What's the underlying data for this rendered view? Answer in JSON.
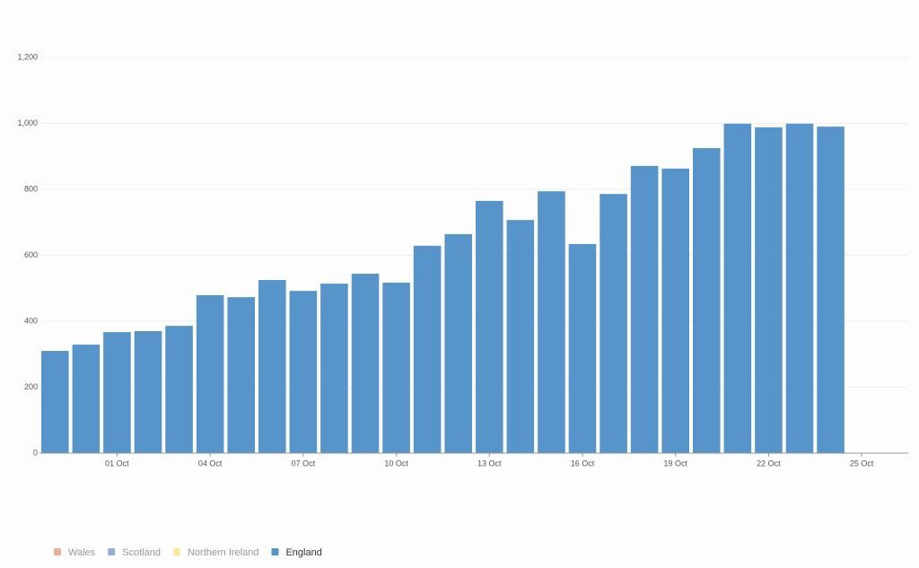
{
  "chart_data": {
    "type": "bar",
    "stacked": true,
    "categories": [
      null,
      null,
      "01 Oct",
      null,
      null,
      "04 Oct",
      null,
      null,
      "07 Oct",
      null,
      null,
      "10 Oct",
      null,
      null,
      "13 Oct",
      null,
      null,
      "16 Oct",
      null,
      null,
      "19 Oct",
      null,
      null,
      "22 Oct",
      null,
      null,
      "25 Oct",
      null
    ],
    "series": [
      {
        "name": "Wales",
        "color": "#e8917b",
        "hidden": true,
        "values": [
          null,
          null,
          null,
          null,
          null,
          null,
          null,
          null,
          null,
          null,
          null,
          null,
          null,
          null,
          null,
          null,
          null,
          null,
          null,
          null,
          null,
          null,
          null,
          null,
          null,
          null,
          null,
          null
        ]
      },
      {
        "name": "Scotland",
        "color": "#7395c9",
        "hidden": true,
        "values": [
          null,
          null,
          null,
          null,
          null,
          null,
          null,
          null,
          null,
          null,
          null,
          null,
          null,
          null,
          null,
          null,
          null,
          null,
          null,
          null,
          null,
          null,
          null,
          null,
          null,
          null,
          null,
          null
        ]
      },
      {
        "name": "Northern Ireland",
        "color": "#f7e27c",
        "hidden": true,
        "values": [
          null,
          null,
          null,
          null,
          null,
          null,
          null,
          null,
          null,
          null,
          null,
          null,
          null,
          null,
          null,
          null,
          null,
          null,
          null,
          null,
          null,
          null,
          null,
          null,
          null,
          null,
          null,
          null
        ]
      },
      {
        "name": "England",
        "color": "#5694ca",
        "hidden": false,
        "values": [
          310,
          329,
          367,
          370,
          386,
          479,
          473,
          525,
          492,
          514,
          544,
          517,
          629,
          664,
          765,
          707,
          794,
          634,
          786,
          871,
          863,
          925,
          999,
          988,
          999,
          990,
          null,
          null
        ]
      }
    ],
    "ylim": [
      0,
      1200
    ],
    "yticks": [
      0,
      200,
      400,
      600,
      800,
      {
        "value": 1000,
        "label": "1,000"
      },
      {
        "value": 1200,
        "label": "1,200"
      }
    ],
    "grid": true,
    "legend": "bottom-left"
  }
}
